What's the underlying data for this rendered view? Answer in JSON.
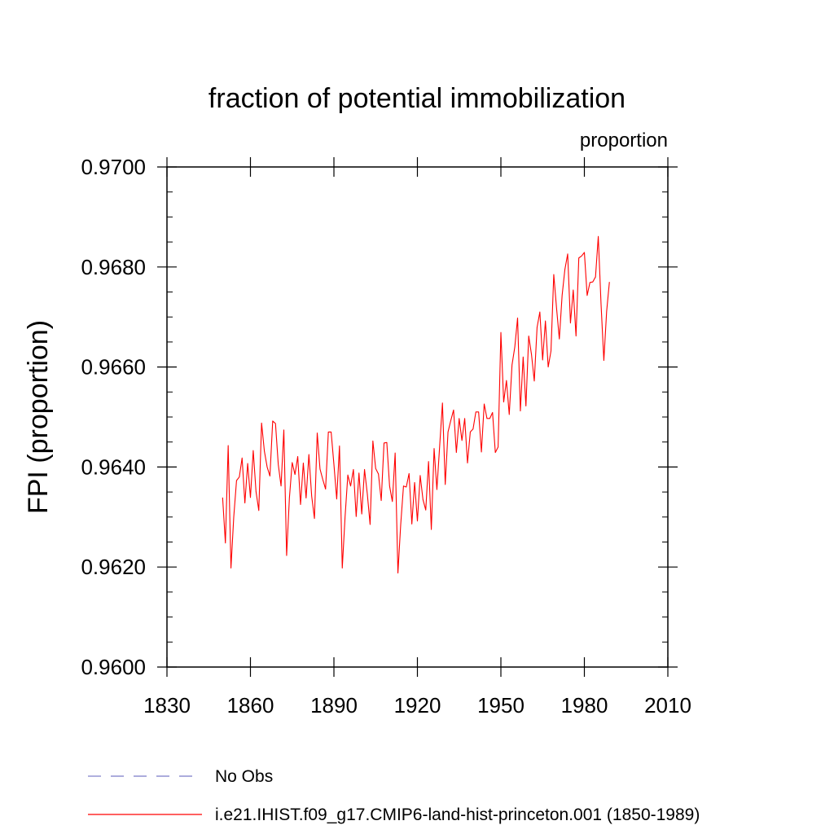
{
  "chart_data": {
    "type": "line",
    "title": "fraction of potential immobilization",
    "units_label": "proportion",
    "ylabel": "FPI  (proportion)",
    "xlabel": "",
    "xlim": [
      1830,
      2010
    ],
    "ylim": [
      0.96,
      0.97
    ],
    "x_ticks": [
      1830,
      1860,
      1890,
      1920,
      1950,
      1980,
      2010
    ],
    "x_tick_labels": [
      "1830",
      "1860",
      "1890",
      "1920",
      "1950",
      "1980",
      "2010"
    ],
    "y_ticks": [
      0.96,
      0.962,
      0.964,
      0.966,
      0.968,
      0.97
    ],
    "y_tick_labels": [
      "0.9600",
      "0.9620",
      "0.9640",
      "0.9660",
      "0.9680",
      "0.9700"
    ],
    "y_minor_step": 0.0005,
    "x_minor_step": 0,
    "grid": false,
    "legend_position": "bottom-left",
    "legend": [
      {
        "label": "No Obs",
        "color": "#7b7bc8",
        "style": "dashed"
      },
      {
        "label": "i.e21.IHIST.f09_g17.CMIP6-land-hist-princeton.001 (1850-1989)",
        "color": "#ff0000",
        "style": "solid"
      }
    ],
    "series": [
      {
        "name": "i.e21.IHIST.f09_g17.CMIP6-land-hist-princeton.001 (1850-1989)",
        "color": "#ff0000",
        "x": [
          1850,
          1851,
          1852,
          1853,
          1854,
          1855,
          1856,
          1857,
          1858,
          1859,
          1860,
          1861,
          1862,
          1863,
          1864,
          1865,
          1866,
          1867,
          1868,
          1869,
          1870,
          1871,
          1872,
          1873,
          1874,
          1875,
          1876,
          1877,
          1878,
          1879,
          1880,
          1881,
          1882,
          1883,
          1884,
          1885,
          1886,
          1887,
          1888,
          1889,
          1890,
          1891,
          1892,
          1893,
          1894,
          1895,
          1896,
          1897,
          1898,
          1899,
          1900,
          1901,
          1902,
          1903,
          1904,
          1905,
          1906,
          1907,
          1908,
          1909,
          1910,
          1911,
          1912,
          1913,
          1914,
          1915,
          1916,
          1917,
          1918,
          1919,
          1920,
          1921,
          1922,
          1923,
          1924,
          1925,
          1926,
          1927,
          1928,
          1929,
          1930,
          1931,
          1932,
          1933,
          1934,
          1935,
          1936,
          1937,
          1938,
          1939,
          1940,
          1941,
          1942,
          1943,
          1944,
          1945,
          1946,
          1947,
          1948,
          1949,
          1950,
          1951,
          1952,
          1953,
          1954,
          1955,
          1956,
          1957,
          1958,
          1959,
          1960,
          1961,
          1962,
          1963,
          1964,
          1965,
          1966,
          1967,
          1968,
          1969,
          1970,
          1971,
          1972,
          1973,
          1974,
          1975,
          1976,
          1977,
          1978,
          1979,
          1980,
          1981,
          1982,
          1983,
          1984,
          1985,
          1986,
          1987,
          1988,
          1989
        ],
        "y": [
          0.96339,
          0.96248,
          0.96443,
          0.96198,
          0.963,
          0.96373,
          0.9638,
          0.96418,
          0.96328,
          0.96407,
          0.96339,
          0.96433,
          0.96351,
          0.96313,
          0.96488,
          0.96432,
          0.964,
          0.96382,
          0.96492,
          0.96487,
          0.96405,
          0.96362,
          0.96474,
          0.96223,
          0.96338,
          0.96409,
          0.96385,
          0.96421,
          0.96325,
          0.96408,
          0.96338,
          0.96425,
          0.96342,
          0.96297,
          0.96468,
          0.96396,
          0.96375,
          0.96356,
          0.9647,
          0.9647,
          0.96405,
          0.96336,
          0.96442,
          0.96198,
          0.963,
          0.96384,
          0.96362,
          0.96395,
          0.96301,
          0.96388,
          0.96306,
          0.96395,
          0.96346,
          0.96285,
          0.96452,
          0.96397,
          0.96386,
          0.96333,
          0.96448,
          0.96449,
          0.96362,
          0.96331,
          0.96428,
          0.96188,
          0.96285,
          0.96362,
          0.9636,
          0.96387,
          0.96286,
          0.96369,
          0.96292,
          0.96383,
          0.96335,
          0.96314,
          0.96411,
          0.96275,
          0.96437,
          0.96355,
          0.96442,
          0.96528,
          0.96365,
          0.9647,
          0.96493,
          0.96514,
          0.96429,
          0.96497,
          0.96453,
          0.96497,
          0.96408,
          0.9647,
          0.96476,
          0.9651,
          0.9651,
          0.9643,
          0.96526,
          0.96497,
          0.96497,
          0.96509,
          0.96429,
          0.9644,
          0.96669,
          0.9653,
          0.96573,
          0.96505,
          0.96604,
          0.9664,
          0.96698,
          0.96512,
          0.9662,
          0.96522,
          0.96662,
          0.96625,
          0.96572,
          0.96679,
          0.9671,
          0.96614,
          0.96692,
          0.966,
          0.96632,
          0.96785,
          0.96718,
          0.96656,
          0.96743,
          0.96795,
          0.96826,
          0.96688,
          0.96754,
          0.96662,
          0.96818,
          0.96822,
          0.96829,
          0.96743,
          0.96769,
          0.9677,
          0.9678,
          0.96861,
          0.96725,
          0.96613,
          0.96711,
          0.9677
        ]
      }
    ]
  }
}
